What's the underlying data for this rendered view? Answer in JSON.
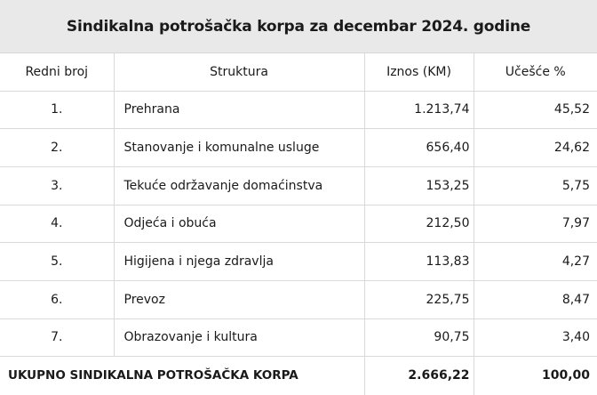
{
  "title": "Sindikalna potrošačka korpa za decembar 2024. godine",
  "headers": {
    "redni_broj": "Redni broj",
    "struktura": "Struktura",
    "iznos": "Iznos (KM)",
    "ucesce": "Učešće %"
  },
  "rows": [
    {
      "rb": "1.",
      "struktura": "Prehrana",
      "iznos": "1.213,74",
      "ucesce": "45,52"
    },
    {
      "rb": "2.",
      "struktura": "Stanovanje i komunalne usluge",
      "iznos": "656,40",
      "ucesce": "24,62"
    },
    {
      "rb": "3.",
      "struktura": "Tekuće održavanje domaćinstva",
      "iznos": "153,25",
      "ucesce": "5,75"
    },
    {
      "rb": "4.",
      "struktura": "Odjeća i obuća",
      "iznos": "212,50",
      "ucesce": "7,97"
    },
    {
      "rb": "5.",
      "struktura": "Higijena i njega zdravlja",
      "iznos": "113,83",
      "ucesce": "4,27"
    },
    {
      "rb": "6.",
      "struktura": "Prevoz",
      "iznos": "225,75",
      "ucesce": "8,47"
    },
    {
      "rb": "7.",
      "struktura": "Obrazovanje i kultura",
      "iznos": "90,75",
      "ucesce": "3,40"
    }
  ],
  "total": {
    "label": "UKUPNO SINDIKALNA POTROŠAČKA KORPA",
    "iznos": "2.666,22",
    "ucesce": "100,00"
  }
}
